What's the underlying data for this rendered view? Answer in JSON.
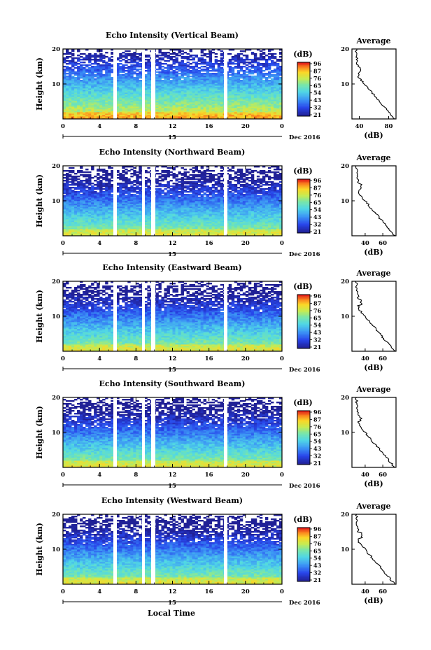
{
  "chart_data": [
    {
      "type": "heatmap",
      "title": "Echo Intensity (Vertical Beam)",
      "ylabel": "Height (km)",
      "x_ticks": [
        "0",
        "4",
        "8",
        "12",
        "16",
        "20",
        "0"
      ],
      "y_ticks": [
        "10",
        "20"
      ],
      "date_day": "15",
      "date_month": "Dec 2016",
      "colorbar_title": "(dB)",
      "colorbar_ticks": [
        "96",
        "87",
        "76",
        "65",
        "54",
        "43",
        "32",
        "21"
      ],
      "profile": {
        "title": "Average",
        "xlabel": "(dB)",
        "x_ticks": [
          "40",
          "80"
        ],
        "xlim": [
          30,
          90
        ],
        "y_ticks": [
          "10",
          "20"
        ]
      }
    },
    {
      "type": "heatmap",
      "title": "Echo Intensity (Northward Beam)",
      "ylabel": "Height (km)",
      "x_ticks": [
        "0",
        "4",
        "8",
        "12",
        "16",
        "20",
        "0"
      ],
      "y_ticks": [
        "10",
        "20"
      ],
      "date_day": "15",
      "date_month": "Dec 2016",
      "colorbar_title": "(dB)",
      "colorbar_ticks": [
        "96",
        "87",
        "76",
        "65",
        "54",
        "43",
        "32",
        "21"
      ],
      "profile": {
        "title": "Average",
        "xlabel": "(dB)",
        "x_ticks": [
          "40",
          "60"
        ],
        "xlim": [
          25,
          75
        ],
        "y_ticks": [
          "10",
          "20"
        ]
      }
    },
    {
      "type": "heatmap",
      "title": "Echo Intensity (Eastward Beam)",
      "ylabel": "Height (km)",
      "x_ticks": [
        "0",
        "4",
        "8",
        "12",
        "16",
        "20",
        "0"
      ],
      "y_ticks": [
        "10",
        "20"
      ],
      "date_day": "15",
      "date_month": "Dec 2016",
      "colorbar_title": "(dB)",
      "colorbar_ticks": [
        "96",
        "87",
        "76",
        "65",
        "54",
        "43",
        "32",
        "21"
      ],
      "profile": {
        "title": "Average",
        "xlabel": "(dB)",
        "x_ticks": [
          "40",
          "60"
        ],
        "xlim": [
          25,
          75
        ],
        "y_ticks": [
          "10",
          "20"
        ]
      }
    },
    {
      "type": "heatmap",
      "title": "Echo Intensity (Southward Beam)",
      "ylabel": "Height (km)",
      "x_ticks": [
        "0",
        "4",
        "8",
        "12",
        "16",
        "20",
        "0"
      ],
      "y_ticks": [
        "10",
        "20"
      ],
      "date_day": "15",
      "date_month": "Dec 2016",
      "colorbar_title": "(dB)",
      "colorbar_ticks": [
        "96",
        "87",
        "76",
        "65",
        "54",
        "43",
        "32",
        "21"
      ],
      "profile": {
        "title": "Average",
        "xlabel": "(dB)",
        "x_ticks": [
          "40",
          "60"
        ],
        "xlim": [
          25,
          75
        ],
        "y_ticks": [
          "10",
          "20"
        ]
      }
    },
    {
      "type": "heatmap",
      "title": "Echo Intensity (Westward Beam)",
      "ylabel": "Height (km)",
      "x_ticks": [
        "0",
        "4",
        "8",
        "12",
        "16",
        "20",
        "0"
      ],
      "y_ticks": [
        "10",
        "20"
      ],
      "date_day": "15",
      "date_month": "Dec 2016",
      "colorbar_title": "(dB)",
      "colorbar_ticks": [
        "96",
        "87",
        "76",
        "65",
        "54",
        "43",
        "32",
        "21"
      ],
      "profile": {
        "title": "Average",
        "xlabel": "(dB)",
        "x_ticks": [
          "40",
          "60"
        ],
        "xlim": [
          25,
          75
        ],
        "y_ticks": [
          "10",
          "20"
        ]
      }
    }
  ],
  "xlabel": "Local Time"
}
